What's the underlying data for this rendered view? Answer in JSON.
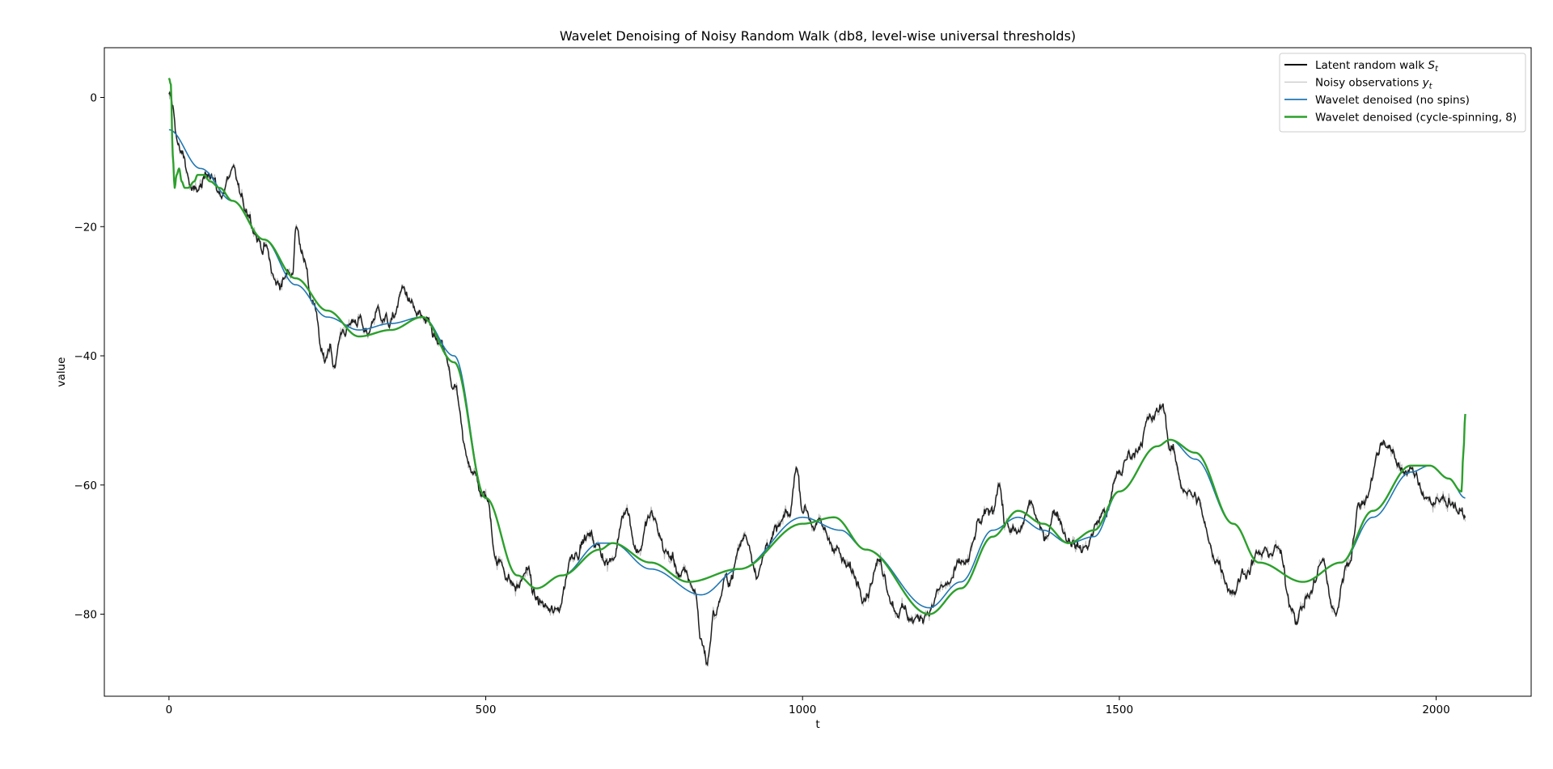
{
  "chart_data": {
    "type": "line",
    "title": "Wavelet Denoising of Noisy Random Walk (db8, level-wise universal thresholds)",
    "xlabel": "t",
    "ylabel": "value",
    "xlim": [
      -102,
      2150
    ],
    "ylim": [
      -92.7,
      7.7
    ],
    "xticks": [
      0,
      500,
      1000,
      1500,
      2000
    ],
    "yticks": [
      0,
      -20,
      -40,
      -60,
      -80
    ],
    "ytick_labels": [
      "0",
      "−20",
      "−40",
      "−60",
      "−80"
    ],
    "grid": false,
    "legend_position": "top-right",
    "series": [
      {
        "name": "Latent random walk S_t",
        "legend_label": "Latent random walk ",
        "legend_symbol": "S",
        "legend_sub": "t",
        "color": "#000000",
        "style": "jagged",
        "x": [
          0,
          20,
          40,
          50,
          65,
          80,
          100,
          120,
          150,
          170,
          195,
          200,
          210,
          225,
          245,
          255,
          260,
          275,
          300,
          310,
          330,
          350,
          370,
          395,
          410,
          430,
          450,
          470,
          500,
          520,
          550,
          565,
          580,
          610,
          640,
          660,
          700,
          720,
          740,
          760,
          790,
          810,
          830,
          840,
          850,
          860,
          880,
          910,
          930,
          950,
          980,
          990,
          1000,
          1020,
          1050,
          1070,
          1100,
          1120,
          1150,
          1180,
          1200,
          1220,
          1260,
          1280,
          1300,
          1310,
          1320,
          1340,
          1360,
          1380,
          1400,
          1420,
          1440,
          1480,
          1500,
          1520,
          1550,
          1570,
          1580,
          1600,
          1620,
          1650,
          1680,
          1700,
          1720,
          1750,
          1770,
          1780,
          1800,
          1820,
          1840,
          1860,
          1880,
          1920,
          1940,
          1960,
          1980,
          2000,
          2020,
          2046
        ],
        "y": [
          0,
          -9,
          -15,
          -14,
          -11,
          -15,
          -12,
          -17,
          -23,
          -29,
          -27,
          -20,
          -23,
          -31,
          -41,
          -38,
          -41,
          -36,
          -34,
          -37,
          -33,
          -35,
          -30,
          -34,
          -36,
          -39,
          -45,
          -56,
          -62,
          -72,
          -76,
          -73,
          -78,
          -80,
          -70,
          -68,
          -72,
          -63,
          -70,
          -65,
          -71,
          -74,
          -76,
          -84,
          -87,
          -80,
          -75,
          -68,
          -73,
          -68,
          -65,
          -57,
          -63,
          -66,
          -69,
          -73,
          -76,
          -72,
          -79,
          -81,
          -79,
          -76,
          -72,
          -66,
          -64,
          -59,
          -66,
          -68,
          -63,
          -68,
          -64,
          -68,
          -70,
          -64,
          -58,
          -55,
          -50,
          -48,
          -54,
          -60,
          -62,
          -71,
          -76,
          -73,
          -71,
          -70,
          -78,
          -80,
          -77,
          -72,
          -80,
          -72,
          -63,
          -53,
          -57,
          -58,
          -61,
          -63,
          -62,
          -65
        ]
      },
      {
        "name": "Noisy observations y_t",
        "legend_label": "Noisy observations ",
        "legend_symbol": "y",
        "legend_sub": "t",
        "color": "#bdbdbd",
        "style": "noisy"
      },
      {
        "name": "Wavelet denoised (no spins)",
        "legend_label": "Wavelet denoised (no spins)",
        "color": "#1f77b4",
        "style": "smooth",
        "x": [
          0,
          50,
          100,
          150,
          200,
          250,
          300,
          350,
          400,
          450,
          500,
          550,
          580,
          620,
          680,
          700,
          760,
          840,
          900,
          1000,
          1060,
          1100,
          1200,
          1250,
          1300,
          1340,
          1380,
          1420,
          1460,
          1500,
          1560,
          1580,
          1620,
          1680,
          1720,
          1790,
          1850,
          1900,
          1960,
          1990,
          2020,
          2046
        ],
        "y": [
          -5,
          -11,
          -16,
          -22,
          -29,
          -34,
          -36,
          -35,
          -34,
          -40,
          -62,
          -74,
          -76,
          -74,
          -69,
          -69,
          -73,
          -77,
          -73,
          -65,
          -67,
          -70,
          -79,
          -75,
          -67,
          -65,
          -67,
          -69,
          -68,
          -61,
          -54,
          -53,
          -56,
          -66,
          -72,
          -75,
          -72,
          -65,
          -58,
          -57,
          -59,
          -62
        ]
      },
      {
        "name": "Wavelet denoised (cycle-spinning, 8)",
        "legend_label": "Wavelet denoised (cycle-spinning, 8)",
        "color": "#2ca02c",
        "style": "smooth-thick",
        "x": [
          0,
          3,
          6,
          9,
          12,
          16,
          20,
          25,
          30,
          40,
          45,
          55,
          65,
          80,
          100,
          150,
          200,
          250,
          300,
          350,
          400,
          450,
          500,
          550,
          580,
          620,
          680,
          700,
          760,
          820,
          900,
          1000,
          1050,
          1100,
          1200,
          1250,
          1300,
          1340,
          1380,
          1420,
          1460,
          1500,
          1560,
          1580,
          1620,
          1680,
          1720,
          1790,
          1850,
          1900,
          1960,
          1990,
          2020,
          2040,
          2043,
          2046
        ],
        "y": [
          3,
          2,
          -9,
          -14,
          -12,
          -11,
          -13,
          -14,
          -14,
          -13,
          -12,
          -12,
          -13,
          -14,
          -16,
          -22,
          -28,
          -33,
          -37,
          -36,
          -34,
          -41,
          -62,
          -74,
          -76,
          -74,
          -70,
          -69,
          -72,
          -75,
          -73,
          -66,
          -65,
          -70,
          -80,
          -76,
          -68,
          -64,
          -66,
          -69,
          -67,
          -61,
          -54,
          -53,
          -55,
          -66,
          -72,
          -75,
          -72,
          -64,
          -57,
          -57,
          -59,
          -61,
          -55,
          -49
        ]
      }
    ]
  }
}
